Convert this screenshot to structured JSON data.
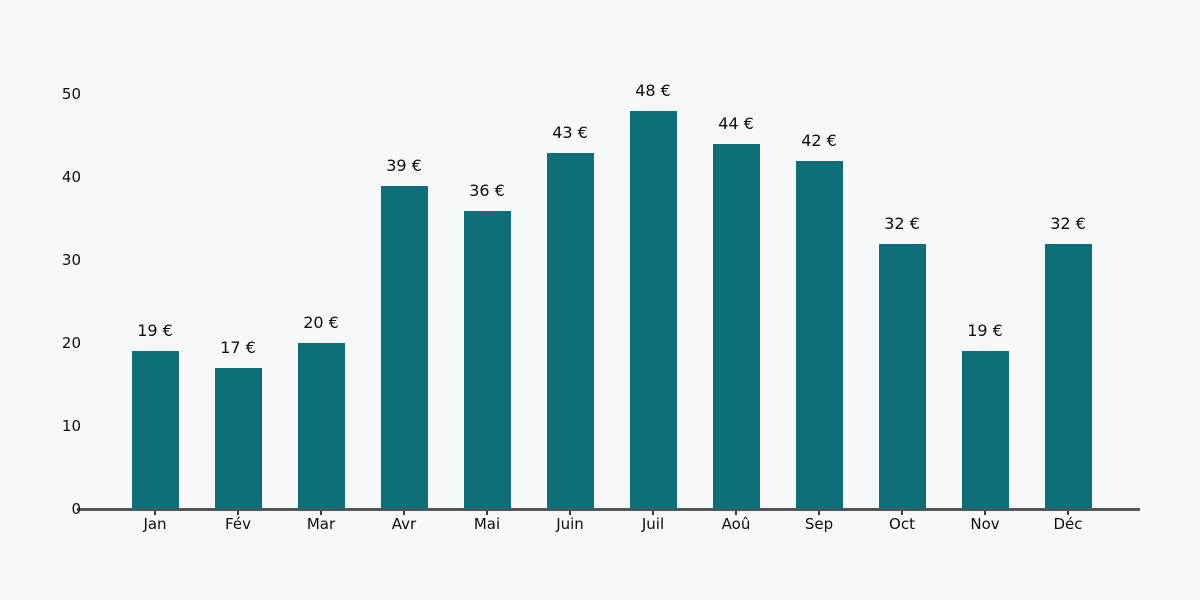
{
  "chart_data": {
    "type": "bar",
    "title": "",
    "xlabel": "",
    "ylabel": "",
    "categories": [
      "Jan",
      "Fév",
      "Mar",
      "Avr",
      "Mai",
      "Juin",
      "Juil",
      "Aoû",
      "Sep",
      "Oct",
      "Nov",
      "Déc"
    ],
    "values": [
      19,
      17,
      20,
      39,
      36,
      43,
      48,
      44,
      42,
      32,
      19,
      32
    ],
    "value_labels": [
      "19 €",
      "17 €",
      "20 €",
      "39 €",
      "36 €",
      "43 €",
      "48 €",
      "44 €",
      "42 €",
      "32 €",
      "19 €",
      "32 €"
    ],
    "currency": "€",
    "ylim": [
      0,
      50
    ],
    "yticks": [
      "0",
      "10",
      "20",
      "30",
      "40",
      "50"
    ],
    "ytick_values": [
      0,
      10,
      20,
      30,
      40,
      50
    ],
    "grid": false,
    "legend": null,
    "colors": {
      "bar": "#0f6f78",
      "background": "#f7f8fa",
      "axis_line": "#555555",
      "tick": "#3c3c3c",
      "text": "#0d0d0d"
    }
  }
}
